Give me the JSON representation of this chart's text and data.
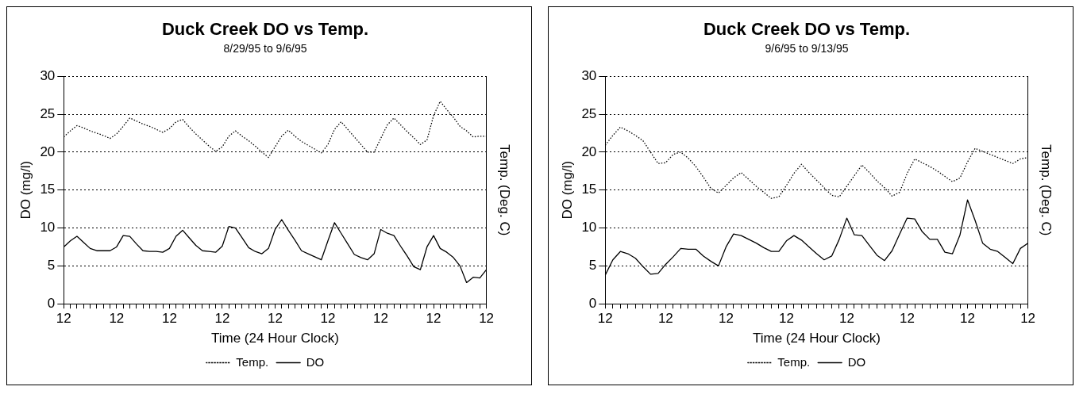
{
  "chart_data": [
    {
      "type": "line",
      "title": "Duck Creek DO vs Temp.",
      "subtitle": "8/29/95 to 9/6/95",
      "xlabel": "Time (24 Hour Clock)",
      "ylabel": "DO (mg/l)",
      "y2label": "Temp. (Deg. C)",
      "categories": [
        "12",
        null,
        null,
        null,
        null,
        null,
        null,
        null,
        "12",
        null,
        null,
        null,
        null,
        null,
        null,
        null,
        "12",
        null,
        null,
        null,
        null,
        null,
        null,
        null,
        "12",
        null,
        null,
        null,
        null,
        null,
        null,
        null,
        "12",
        null,
        null,
        null,
        null,
        null,
        null,
        null,
        "12",
        null,
        null,
        null,
        null,
        null,
        null,
        null,
        "12",
        null,
        null,
        null,
        null,
        null,
        null,
        null,
        "12",
        null,
        null,
        null,
        null,
        null,
        null,
        null,
        "12"
      ],
      "ylim": [
        0,
        30
      ],
      "yticks": [
        0,
        5,
        10,
        15,
        20,
        25,
        30
      ],
      "grid": "y",
      "legend": "bottom",
      "marker": "none",
      "series": [
        {
          "name": "Temp.",
          "color": "#000000",
          "line_style": "dotted",
          "values": [
            22,
            22.8,
            23.5,
            23.2,
            22.8,
            22.5,
            22.2,
            21.8,
            22.4,
            23.4,
            24.5,
            24.1,
            23.7,
            23.4,
            23,
            22.6,
            23.1,
            24,
            24.3,
            23.3,
            22.4,
            21.6,
            20.8,
            20.1,
            20.7,
            22.1,
            22.8,
            22.1,
            21.5,
            20.8,
            20,
            19.3,
            20.7,
            22.1,
            22.9,
            22.1,
            21.4,
            20.9,
            20.4,
            19.9,
            21,
            23,
            24,
            23,
            22,
            21,
            20,
            20,
            21.8,
            23.6,
            24.5,
            23.6,
            22.7,
            21.9,
            21,
            21.6,
            24.8,
            26.7,
            25.6,
            24.6,
            23.4,
            22.8,
            22,
            22.1,
            22.1
          ]
        },
        {
          "name": "DO",
          "color": "#000000",
          "line_style": "solid",
          "values": [
            7.5,
            8.3,
            8.9,
            8.1,
            7.3,
            7,
            7,
            7,
            7.5,
            9,
            8.9,
            7.9,
            7,
            6.9,
            6.9,
            6.8,
            7.3,
            8.9,
            9.7,
            8.7,
            7.7,
            7,
            6.9,
            6.8,
            7.6,
            10.2,
            10,
            8.7,
            7.4,
            6.9,
            6.6,
            7.3,
            9.8,
            11.1,
            9.7,
            8.4,
            7,
            6.6,
            6.2,
            5.8,
            8.3,
            10.7,
            9.3,
            7.9,
            6.5,
            6.1,
            5.8,
            6.6,
            9.8,
            9.3,
            9,
            7.6,
            6.3,
            4.9,
            4.5,
            7.5,
            9,
            7.3,
            6.8,
            6.1,
            5,
            2.8,
            3.5,
            3.4,
            4.5
          ]
        }
      ]
    },
    {
      "type": "line",
      "title": "Duck Creek DO vs Temp.",
      "subtitle": "9/6/95 to 9/13/95",
      "xlabel": "Time (24 Hour Clock)",
      "ylabel": "DO (mg/l)",
      "y2label": "Temp. (Deg. C)",
      "categories": [
        "12",
        null,
        null,
        null,
        null,
        null,
        null,
        null,
        "12",
        null,
        null,
        null,
        null,
        null,
        null,
        null,
        "12",
        null,
        null,
        null,
        null,
        null,
        null,
        null,
        "12",
        null,
        null,
        null,
        null,
        null,
        null,
        null,
        "12",
        null,
        null,
        null,
        null,
        null,
        null,
        null,
        "12",
        null,
        null,
        null,
        null,
        null,
        null,
        null,
        "12",
        null,
        null,
        null,
        null,
        null,
        null,
        null,
        "12"
      ],
      "ylim": [
        0,
        30
      ],
      "yticks": [
        0,
        5,
        10,
        15,
        20,
        25,
        30
      ],
      "grid": "y",
      "legend": "bottom",
      "marker": "none",
      "series": [
        {
          "name": "Temp.",
          "color": "#000000",
          "line_style": "dotted",
          "values": [
            20.9,
            22.2,
            23.3,
            22.8,
            22.2,
            21.5,
            20,
            18.5,
            18.6,
            19.7,
            20,
            19.2,
            18.1,
            16.7,
            15.2,
            14.6,
            15.6,
            16.6,
            17.3,
            16.4,
            15.5,
            14.7,
            13.9,
            14.1,
            15.6,
            17.2,
            18.4,
            17.3,
            16.3,
            15.3,
            14.3,
            14.1,
            15.5,
            16.9,
            18.3,
            17.3,
            16.2,
            15.3,
            14.2,
            14.7,
            17.2,
            19.1,
            18.6,
            18.1,
            17.5,
            16.8,
            16.1,
            16.6,
            18.7,
            20.5,
            20.1,
            19.7,
            19.3,
            18.9,
            18.5,
            19.1,
            19.3
          ]
        },
        {
          "name": "DO",
          "color": "#000000",
          "line_style": "solid",
          "values": [
            3.8,
            5.8,
            6.9,
            6.6,
            6,
            4.9,
            3.9,
            4,
            5.2,
            6.2,
            7.3,
            7.2,
            7.2,
            6.3,
            5.6,
            5,
            7.5,
            9.2,
            9,
            8.5,
            8,
            7.4,
            6.9,
            6.9,
            8.3,
            9,
            8.4,
            7.5,
            6.6,
            5.8,
            6.3,
            8.5,
            11.3,
            9.1,
            9,
            7.7,
            6.4,
            5.7,
            7,
            9.2,
            11.3,
            11.2,
            9.5,
            8.5,
            8.5,
            6.8,
            6.6,
            9.1,
            13.7,
            11,
            8,
            7.2,
            6.9,
            6.1,
            5.3,
            7.3,
            8
          ]
        }
      ]
    }
  ]
}
